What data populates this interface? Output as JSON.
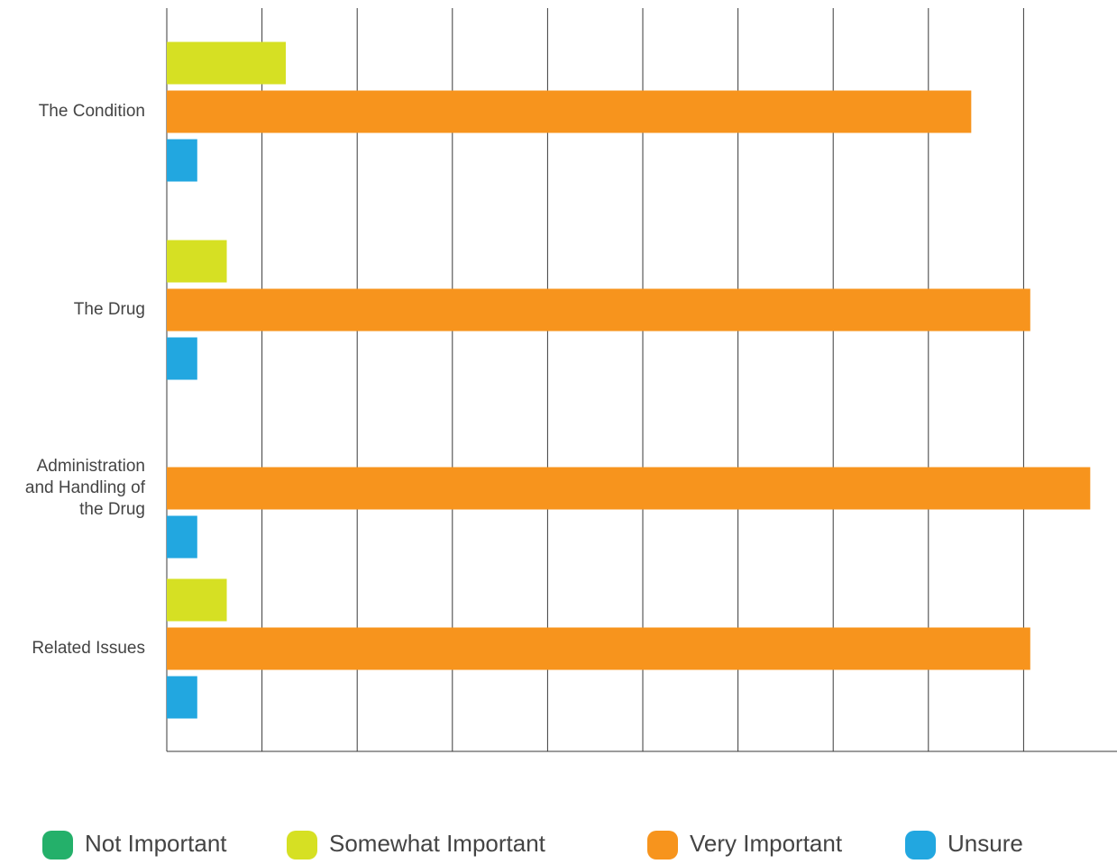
{
  "chart_data": {
    "type": "bar",
    "orientation": "horizontal",
    "title": "",
    "xlabel": "",
    "ylabel": "",
    "xlim": [
      0,
      9.7
    ],
    "grid": "vertical lines",
    "legend_position": "bottom",
    "categories": [
      [
        "The Condition"
      ],
      [
        "The Drug"
      ],
      [
        "Administration",
        "and Handling of",
        "the Drug"
      ],
      [
        "Related Issues"
      ]
    ],
    "series": [
      {
        "name": "Not Important",
        "color": "#24b06a",
        "values": [
          0,
          0,
          0,
          0
        ]
      },
      {
        "name": "Somewhat Important",
        "color": "#d6e023",
        "values": [
          1.25,
          0.63,
          0,
          0.63
        ]
      },
      {
        "name": "Very Important",
        "color": "#f7941d",
        "values": [
          8.45,
          9.07,
          9.7,
          9.07
        ]
      },
      {
        "name": "Unsure",
        "color": "#22a7e0",
        "values": [
          0.32,
          0.32,
          0.32,
          0.32
        ]
      }
    ]
  }
}
